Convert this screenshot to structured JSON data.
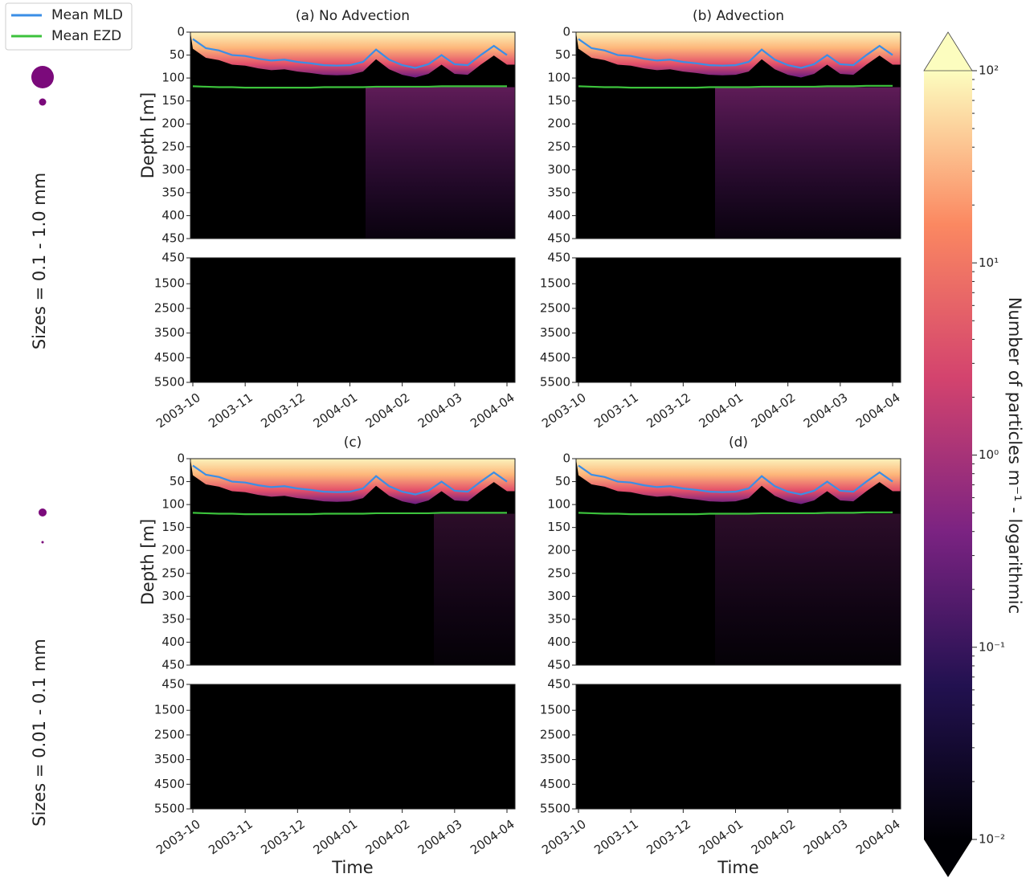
{
  "legend_title": null,
  "row_labels": [
    "Sizes = 0.1 - 1.0 mm",
    "Sizes = 0.01 - 0.1 mm"
  ],
  "colorbar": {
    "label": "Number of particles m⁻¹ - logarithmic",
    "log": true,
    "lim": [
      0.01,
      100
    ],
    "ticks": [
      {
        "value": 100,
        "label": "10²"
      },
      {
        "value": 10,
        "label": "10¹"
      },
      {
        "value": 1,
        "label": "10⁰"
      },
      {
        "value": 0.1,
        "label": "10⁻¹"
      },
      {
        "value": 0.01,
        "label": "10⁻²"
      }
    ]
  },
  "chart_data": [
    {
      "type": "line",
      "title": "(a) No Advection",
      "ylabel": "Depth [m]",
      "categories": [
        "2003-10",
        null,
        null,
        null,
        "2003-11",
        null,
        null,
        null,
        "2003-12",
        null,
        null,
        null,
        "2004-01",
        null,
        null,
        null,
        "2004-02",
        null,
        null,
        null,
        "2004-03",
        null,
        null,
        null,
        "2004-04"
      ],
      "series": [
        {
          "name": "Mean MLD",
          "color": "#3a8ee6",
          "values": [
            15,
            35,
            40,
            50,
            52,
            58,
            62,
            60,
            65,
            68,
            72,
            73,
            72,
            65,
            38,
            60,
            72,
            78,
            70,
            50,
            70,
            72,
            50,
            30,
            50
          ]
        },
        {
          "name": "Mean EZD",
          "color": "#3cc23c",
          "values": [
            118,
            119,
            120,
            120,
            121,
            121,
            121,
            121,
            121,
            121,
            120,
            120,
            120,
            120,
            119,
            119,
            119,
            119,
            119,
            118,
            118,
            118,
            118,
            118,
            118
          ]
        }
      ],
      "ylim": [
        0,
        450
      ],
      "yticks": [
        0,
        50,
        100,
        150,
        200,
        250,
        300,
        350,
        400,
        450
      ],
      "ylim_deep": [
        450,
        5500
      ],
      "yticks_deep": [
        450,
        1500,
        2500,
        3500,
        4500,
        5500
      ]
    },
    {
      "type": "line",
      "title": "(b) Advection",
      "categories": [
        "2003-10",
        null,
        null,
        null,
        "2003-11",
        null,
        null,
        null,
        "2003-12",
        null,
        null,
        null,
        "2004-01",
        null,
        null,
        null,
        "2004-02",
        null,
        null,
        null,
        "2004-03",
        null,
        null,
        null,
        "2004-04"
      ],
      "series": [
        {
          "color": "#3a8ee6",
          "values": [
            15,
            35,
            40,
            50,
            52,
            58,
            62,
            60,
            65,
            68,
            72,
            73,
            72,
            65,
            38,
            60,
            72,
            78,
            70,
            50,
            70,
            72,
            50,
            30,
            50
          ]
        },
        {
          "color": "#3cc23c",
          "values": [
            118,
            119,
            120,
            120,
            121,
            121,
            121,
            121,
            121,
            121,
            120,
            120,
            120,
            120,
            119,
            119,
            119,
            119,
            119,
            118,
            118,
            118,
            117,
            117,
            117
          ]
        }
      ],
      "ylim": [
        0,
        450
      ],
      "yticks": [
        0,
        50,
        100,
        150,
        200,
        250,
        300,
        350,
        400,
        450
      ],
      "ylim_deep": [
        450,
        5500
      ],
      "yticks_deep": [
        450,
        1500,
        2500,
        3500,
        4500,
        5500
      ]
    },
    {
      "type": "line",
      "title": "(c)",
      "ylabel": "Depth [m]",
      "xlabel": "Time",
      "categories": [
        "2003-10",
        null,
        null,
        null,
        "2003-11",
        null,
        null,
        null,
        "2003-12",
        null,
        null,
        null,
        "2004-01",
        null,
        null,
        null,
        "2004-02",
        null,
        null,
        null,
        "2004-03",
        null,
        null,
        null,
        "2004-04"
      ],
      "series": [
        {
          "color": "#3a8ee6",
          "values": [
            15,
            35,
            40,
            50,
            52,
            58,
            62,
            60,
            65,
            68,
            72,
            73,
            72,
            65,
            38,
            60,
            72,
            78,
            70,
            50,
            70,
            72,
            50,
            30,
            50
          ]
        },
        {
          "color": "#3cc23c",
          "values": [
            118,
            119,
            120,
            120,
            121,
            121,
            121,
            121,
            121,
            121,
            120,
            120,
            120,
            120,
            119,
            119,
            119,
            119,
            119,
            118,
            118,
            118,
            118,
            118,
            118
          ]
        }
      ],
      "ylim": [
        0,
        450
      ],
      "yticks": [
        0,
        50,
        100,
        150,
        200,
        250,
        300,
        350,
        400,
        450
      ],
      "ylim_deep": [
        450,
        5500
      ],
      "yticks_deep": [
        450,
        1500,
        2500,
        3500,
        4500,
        5500
      ]
    },
    {
      "type": "line",
      "title": "(d)",
      "xlabel": "Time",
      "categories": [
        "2003-10",
        null,
        null,
        null,
        "2003-11",
        null,
        null,
        null,
        "2003-12",
        null,
        null,
        null,
        "2004-01",
        null,
        null,
        null,
        "2004-02",
        null,
        null,
        null,
        "2004-03",
        null,
        null,
        null,
        "2004-04"
      ],
      "series": [
        {
          "color": "#3a8ee6",
          "values": [
            15,
            35,
            40,
            50,
            52,
            58,
            62,
            60,
            65,
            68,
            72,
            73,
            72,
            65,
            38,
            60,
            72,
            78,
            70,
            50,
            70,
            72,
            50,
            30,
            50
          ]
        },
        {
          "color": "#3cc23c",
          "values": [
            118,
            119,
            120,
            120,
            121,
            121,
            121,
            121,
            121,
            121,
            120,
            120,
            120,
            120,
            119,
            119,
            119,
            119,
            119,
            118,
            118,
            118,
            117,
            117,
            117
          ]
        }
      ],
      "ylim": [
        0,
        450
      ],
      "yticks": [
        0,
        50,
        100,
        150,
        200,
        250,
        300,
        350,
        400,
        450
      ],
      "ylim_deep": [
        450,
        5500
      ],
      "yticks_deep": [
        450,
        1500,
        2500,
        3500,
        4500,
        5500
      ]
    }
  ]
}
